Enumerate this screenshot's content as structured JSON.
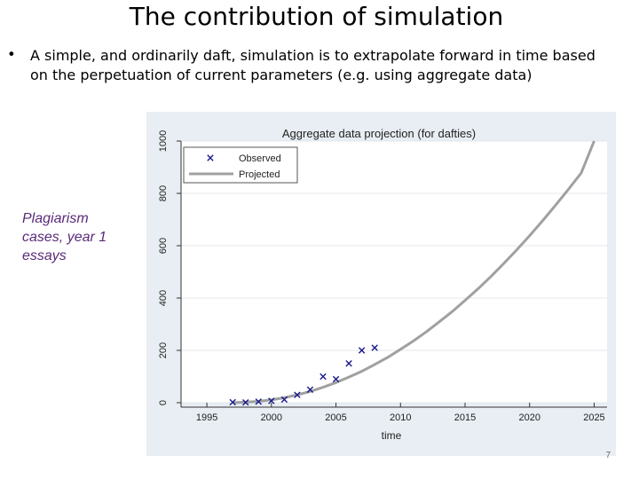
{
  "slide": {
    "title": "The contribution of simulation",
    "bullet_symbol": "•",
    "bullet_text": "A simple, and ordinarily daft, simulation is to extrapolate forward in time based on the perpetuation of current parameters (e.g. using aggregate data)",
    "side_label": [
      "Plagiarism",
      "cases, year 1",
      "essays"
    ],
    "page_number": "7"
  },
  "colors": {
    "observed": "#1a1a8c",
    "projected": "#a0a0a0",
    "frame": "#e8eef3",
    "plot_bg": "#ffffff",
    "side_label": "#5a2a7a"
  },
  "chart_data": {
    "type": "line",
    "title": "Aggregate data projection (for dafties)",
    "xlabel": "time",
    "ylabel": "",
    "xlim": [
      1993,
      2026
    ],
    "ylim": [
      0,
      1000
    ],
    "xticks": [
      1995,
      2000,
      2005,
      2010,
      2015,
      2020,
      2025
    ],
    "yticks": [
      0,
      200,
      400,
      600,
      800,
      1000
    ],
    "grid": true,
    "legend": {
      "position": "top-left",
      "entries": [
        "Observed",
        "Projected"
      ]
    },
    "series": [
      {
        "name": "Observed",
        "marker": "x",
        "x": [
          1997,
          1998,
          1999,
          2000,
          2001,
          2002,
          2003,
          2004,
          2005,
          2006,
          2007,
          2008
        ],
        "y": [
          2,
          1,
          4,
          7,
          12,
          30,
          50,
          100,
          90,
          150,
          200,
          210
        ]
      },
      {
        "name": "Projected",
        "marker": "line",
        "x": [
          1997,
          1998,
          1999,
          2000,
          2001,
          2002,
          2003,
          2004,
          2005,
          2006,
          2007,
          2008,
          2009,
          2010,
          2011,
          2012,
          2013,
          2014,
          2015,
          2016,
          2017,
          2018,
          2019,
          2020,
          2021,
          2022,
          2023,
          2024,
          2025
        ],
        "y": [
          0,
          2,
          5,
          11,
          19,
          30,
          43,
          59,
          77,
          98,
          120,
          146,
          173,
          204,
          236,
          271,
          309,
          348,
          391,
          435,
          482,
          532,
          584,
          638,
          695,
          754,
          815,
          878,
          1000
        ]
      }
    ]
  }
}
